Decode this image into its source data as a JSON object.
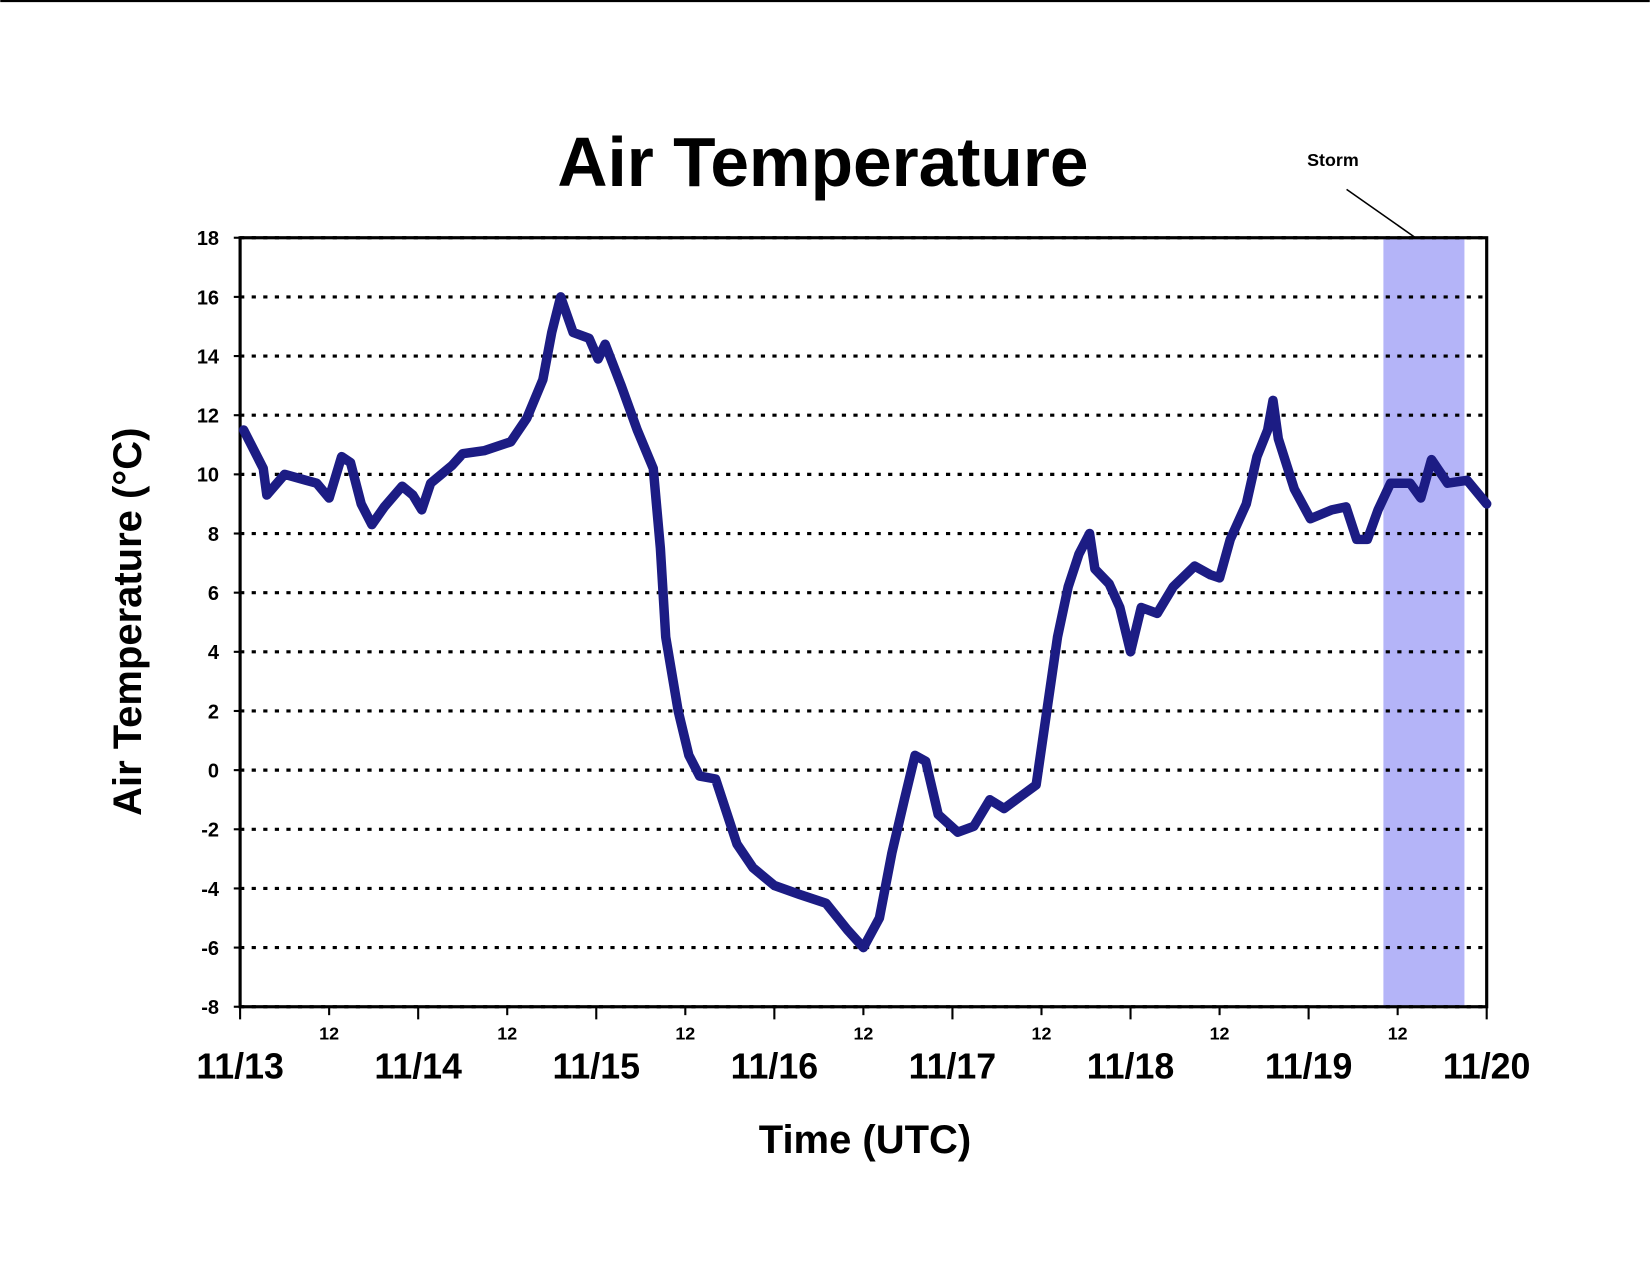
{
  "chart_data": {
    "type": "line",
    "title": "Air Temperature",
    "xlabel": "Time (UTC)",
    "ylabel": "Air Temperature (°C)",
    "xlim": [
      0,
      7
    ],
    "ylim": [
      -8,
      18
    ],
    "yticks": [
      -8,
      -6,
      -4,
      -2,
      0,
      2,
      4,
      6,
      8,
      10,
      12,
      14,
      16,
      18
    ],
    "xticks": [
      {
        "value": 0,
        "label": "11/13"
      },
      {
        "value": 0.5,
        "label": "12"
      },
      {
        "value": 1,
        "label": "11/14"
      },
      {
        "value": 1.5,
        "label": "12"
      },
      {
        "value": 2,
        "label": "11/15"
      },
      {
        "value": 2.5,
        "label": "12"
      },
      {
        "value": 3,
        "label": "11/16"
      },
      {
        "value": 3.5,
        "label": "12"
      },
      {
        "value": 4,
        "label": "11/17"
      },
      {
        "value": 4.5,
        "label": "12"
      },
      {
        "value": 5,
        "label": "11/18"
      },
      {
        "value": 5.5,
        "label": "12"
      },
      {
        "value": 6,
        "label": "11/19"
      },
      {
        "value": 6.5,
        "label": "12"
      },
      {
        "value": 7,
        "label": "11/20"
      }
    ],
    "grid": true,
    "annotations": [
      {
        "text": "Storm",
        "x0": 6.42,
        "x1": 6.875,
        "color": "#b4b4f8"
      }
    ],
    "series": [
      {
        "name": "Air Temperature",
        "color": "#1c1c84",
        "x": [
          0.02,
          0.13,
          0.15,
          0.25,
          0.37,
          0.43,
          0.5,
          0.57,
          0.62,
          0.68,
          0.74,
          0.81,
          0.91,
          0.97,
          1.02,
          1.07,
          1.19,
          1.25,
          1.37,
          1.52,
          1.61,
          1.7,
          1.75,
          1.8,
          1.87,
          1.96,
          2.01,
          2.05,
          2.14,
          2.23,
          2.32,
          2.36,
          2.39,
          2.46,
          2.52,
          2.58,
          2.67,
          2.79,
          2.88,
          3.0,
          3.14,
          3.29,
          3.41,
          3.5,
          3.59,
          3.66,
          3.73,
          3.79,
          3.85,
          3.92,
          4.03,
          4.12,
          4.21,
          4.29,
          4.38,
          4.47,
          4.53,
          4.59,
          4.65,
          4.71,
          4.77,
          4.8,
          4.88,
          4.94,
          5.0,
          5.06,
          5.15,
          5.24,
          5.36,
          5.45,
          5.5,
          5.56,
          5.65,
          5.71,
          5.77,
          5.8,
          5.83,
          5.92,
          6.01,
          6.13,
          6.21,
          6.27,
          6.33,
          6.39,
          6.46,
          6.57,
          6.63,
          6.69,
          6.78,
          6.89,
          7.0
        ],
        "values": [
          11.5,
          10.2,
          9.3,
          10.0,
          9.8,
          9.7,
          9.2,
          10.6,
          10.4,
          9.0,
          8.3,
          8.9,
          9.6,
          9.3,
          8.8,
          9.7,
          10.3,
          10.7,
          10.8,
          11.1,
          11.9,
          13.2,
          14.8,
          16.0,
          14.8,
          14.6,
          13.9,
          14.4,
          13.0,
          11.5,
          10.2,
          7.5,
          4.5,
          2.0,
          0.5,
          -0.2,
          -0.3,
          -2.5,
          -3.3,
          -3.9,
          -4.2,
          -4.5,
          -5.4,
          -6.0,
          -5.0,
          -2.8,
          -1.0,
          0.5,
          0.3,
          -1.5,
          -2.1,
          -1.9,
          -1.0,
          -1.3,
          -0.9,
          -0.5,
          2.0,
          4.5,
          6.2,
          7.3,
          8.0,
          6.8,
          6.3,
          5.5,
          4.0,
          5.5,
          5.3,
          6.2,
          6.9,
          6.6,
          6.5,
          7.8,
          9.0,
          10.6,
          11.5,
          12.5,
          11.2,
          9.5,
          8.5,
          8.8,
          8.9,
          7.8,
          7.8,
          8.8,
          9.7,
          9.7,
          9.2,
          10.5,
          9.7,
          9.8,
          9.0
        ]
      }
    ]
  }
}
